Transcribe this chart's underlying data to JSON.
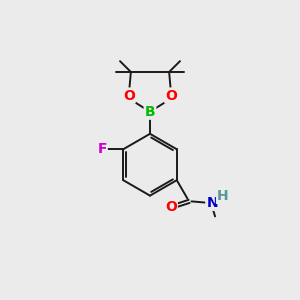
{
  "background_color": "#ebebeb",
  "bond_color": "#1a1a1a",
  "bond_width": 1.4,
  "atom_colors": {
    "O": "#ff0000",
    "B": "#00bb00",
    "F": "#cc00cc",
    "N": "#0000cc",
    "C": "#1a1a1a",
    "H": "#555555"
  },
  "font_size_atom": 10,
  "font_size_small": 8.5
}
